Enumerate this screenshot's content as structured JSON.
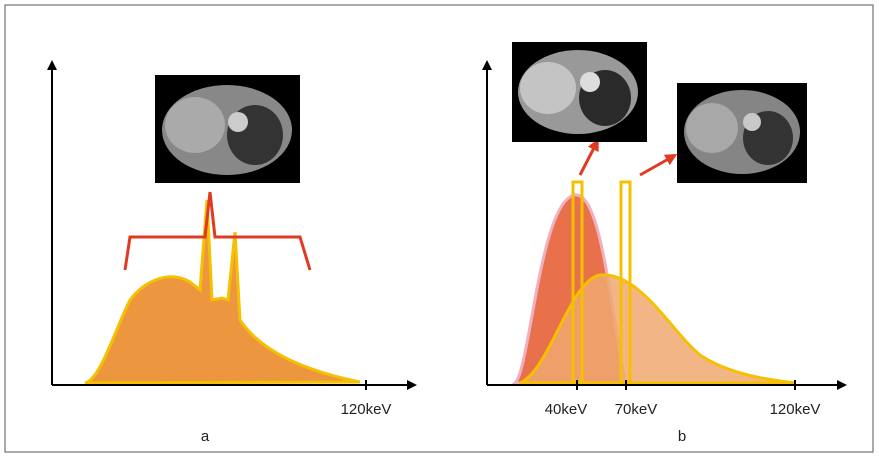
{
  "panels": [
    {
      "label": "a",
      "axis_labels": [
        "120keV"
      ]
    },
    {
      "label": "b",
      "axis_labels": [
        "40keV",
        "70keV",
        "120keV"
      ]
    }
  ]
}
